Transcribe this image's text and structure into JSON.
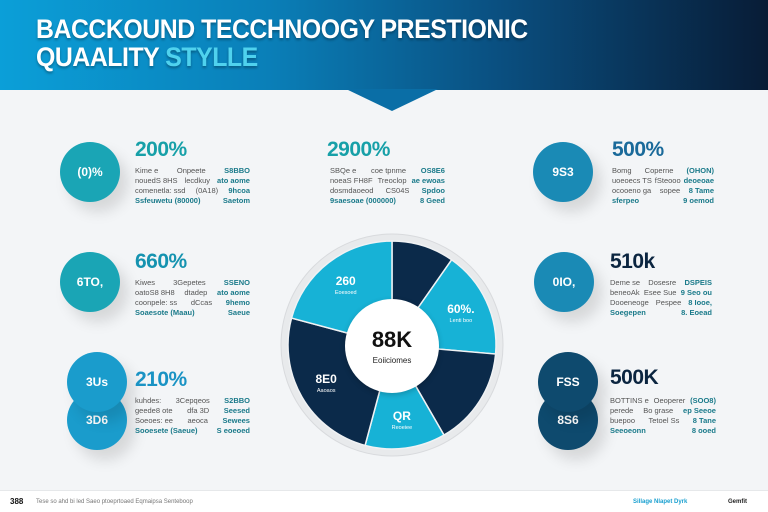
{
  "header": {
    "title_line1": "BACCKOUND  TECCHNOOGY PRESTIONIC",
    "title_line2_a": "QUAALITY ",
    "title_line2_b": "STYLLE"
  },
  "colors": {
    "teal": "#1aa5b5",
    "blue": "#1a9ccc",
    "steel": "#1a8ab5",
    "navy": "#0e4a6e",
    "dark": "#0b2540",
    "cyan": "#17b2d6"
  },
  "stats": [
    {
      "circle": "(0)%",
      "value": "200%",
      "rows": [
        [
          "Kime e",
          "Onpeete",
          "S8BBO"
        ],
        [
          "nouedS 8HS",
          "lecdkuy",
          "ato aome"
        ],
        [
          "comenetla: ssd",
          "(0A18)",
          "9hcoa"
        ],
        [
          "Ssfeuwetu (80000)",
          "",
          "Saetom"
        ]
      ]
    },
    {
      "circle": "6TO,",
      "value": "660%",
      "rows": [
        [
          "Kiwes",
          "3Gepetes",
          "SSENO"
        ],
        [
          "oatoS8 8H8",
          "dtadep",
          "ato aome"
        ],
        [
          "coonpele: ss",
          "dCcas",
          "9hemo"
        ],
        [
          "Soaesote (Maau)",
          "",
          "Saeue"
        ]
      ]
    },
    {
      "circle": "3Us",
      "circle2": "3D6",
      "value": "210%",
      "rows": [
        [
          "kuhdes:",
          "3Cepqeos",
          "S2BBO"
        ],
        [
          "geede8 ote",
          "dfa 3D",
          "Seesed"
        ],
        [
          "Soeoes: ee",
          "aeoca",
          "Sewees"
        ],
        [
          "Sooesete (Saeue)",
          "",
          "S eoeoed"
        ]
      ]
    },
    {
      "value": "2900%",
      "rows": [
        [
          "SBQe e",
          "coe tpnme",
          "OS8E6"
        ],
        [
          "noeaS FH8F",
          "Treoclop",
          "ae ewoas"
        ],
        [
          "dosmdaoeod",
          "CS04S",
          "Spdoo"
        ],
        [
          "9saesoae (000000)",
          "",
          "8 Geed"
        ]
      ]
    },
    {
      "circle": "9S3",
      "value": "500%",
      "rows": [
        [
          "Bomg",
          "Coperne",
          "(OHON)"
        ],
        [
          "uoeoecs TS",
          "fSteooo",
          "deoeoae"
        ],
        [
          "ocooeno ga",
          "sopee",
          "8 Tame"
        ],
        [
          "sferpeo",
          "",
          "9 oemod"
        ]
      ]
    },
    {
      "circle": "0IO,",
      "value": "510k",
      "rows": [
        [
          "Deme se",
          "Dosesre",
          "DSPEIS"
        ],
        [
          "beneoAk",
          "Esee Sue",
          "9 Seo ou"
        ],
        [
          "Dooeneoge",
          "Pespee",
          "8 Iooe,"
        ],
        [
          "Soegepen",
          "",
          "8. Eoead"
        ]
      ]
    },
    {
      "circle": "FSS",
      "circle2": "8S6",
      "value": "500K",
      "rows": [
        [
          "BOTTINS e",
          "Oeoperer",
          "(SOO8)"
        ],
        [
          "perede",
          "Bo grase",
          "ep Seeoe"
        ],
        [
          "buepoo",
          "Tetoel Ss",
          "8 Tane"
        ],
        [
          "Seeoeonn",
          "",
          "8 ooed"
        ]
      ]
    }
  ],
  "chart_data": {
    "type": "pie",
    "center_value": "88K",
    "center_label": "Eoiiciomes",
    "slices": [
      {
        "label": "",
        "sub": "",
        "start_deg": 0,
        "end_deg": 35,
        "color": "#0b2a4a"
      },
      {
        "label": "60%.",
        "sub": "Lenti boo",
        "start_deg": 35,
        "end_deg": 95,
        "color": "#17b2d6"
      },
      {
        "label": "",
        "sub": "",
        "start_deg": 95,
        "end_deg": 150,
        "color": "#0b2a4a"
      },
      {
        "label": "QR",
        "sub": "Reoeiee",
        "start_deg": 150,
        "end_deg": 195,
        "color": "#17b2d6"
      },
      {
        "label": "8E0",
        "sub": "Aaoaos",
        "start_deg": 195,
        "end_deg": 285,
        "color": "#0b2a4a"
      },
      {
        "label": "260",
        "sub": "Eoesoed",
        "start_deg": 285,
        "end_deg": 360,
        "color": "#17b2d6"
      }
    ]
  },
  "footer": {
    "num": "388",
    "text": "Tese so ahd bi led Saeo ptoeprtoaed Eqmaipsa Senteboop",
    "right_link": "Sillage Nlapet Dyrk",
    "brand": "Gemfit"
  }
}
